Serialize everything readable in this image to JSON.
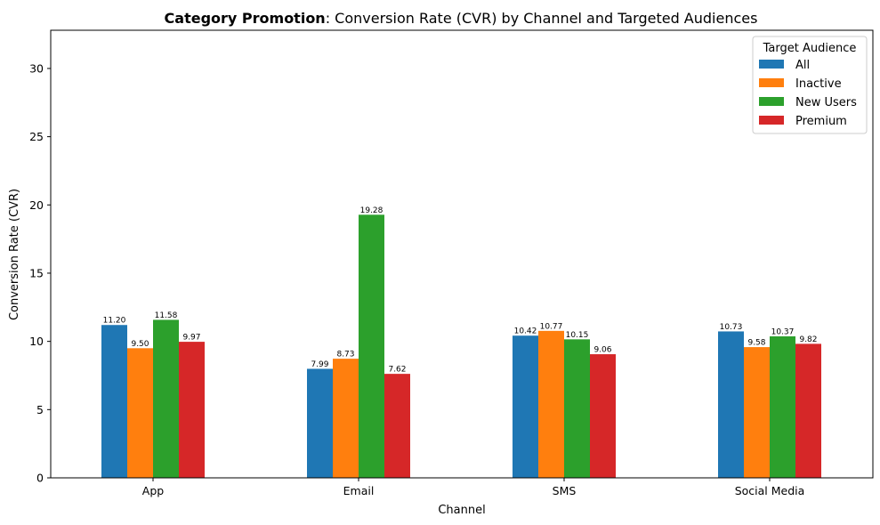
{
  "chart_data": {
    "type": "bar",
    "title_bold": "Category Promotion",
    "title_rest": ": Conversion Rate (CVR) by Channel and Targeted Audiences",
    "xlabel": "Channel",
    "ylabel": "Conversion Rate (CVR)",
    "ylim": [
      0,
      32.8
    ],
    "yticks": [
      0,
      5,
      10,
      15,
      20,
      25,
      30
    ],
    "categories": [
      "App",
      "Email",
      "SMS",
      "Social Media"
    ],
    "legend_title": "Target Audience",
    "legend_position": "top-right",
    "grid": false,
    "series": [
      {
        "name": "All",
        "color": "#1f77b4",
        "values": [
          11.2,
          7.99,
          10.42,
          10.73
        ],
        "labels": [
          "11.20",
          "7.99",
          "10.42",
          "10.73"
        ]
      },
      {
        "name": "Inactive",
        "color": "#ff7f0e",
        "values": [
          9.5,
          8.73,
          10.77,
          9.58
        ],
        "labels": [
          "9.50",
          "8.73",
          "10.77",
          "9.58"
        ]
      },
      {
        "name": "New Users",
        "color": "#2ca02c",
        "values": [
          11.58,
          19.28,
          10.15,
          10.37
        ],
        "labels": [
          "11.58",
          "19.28",
          "10.15",
          "10.37"
        ]
      },
      {
        "name": "Premium",
        "color": "#d62728",
        "values": [
          9.97,
          7.62,
          9.06,
          9.82
        ],
        "labels": [
          "9.97",
          "7.62",
          "9.06",
          "9.82"
        ]
      }
    ]
  }
}
